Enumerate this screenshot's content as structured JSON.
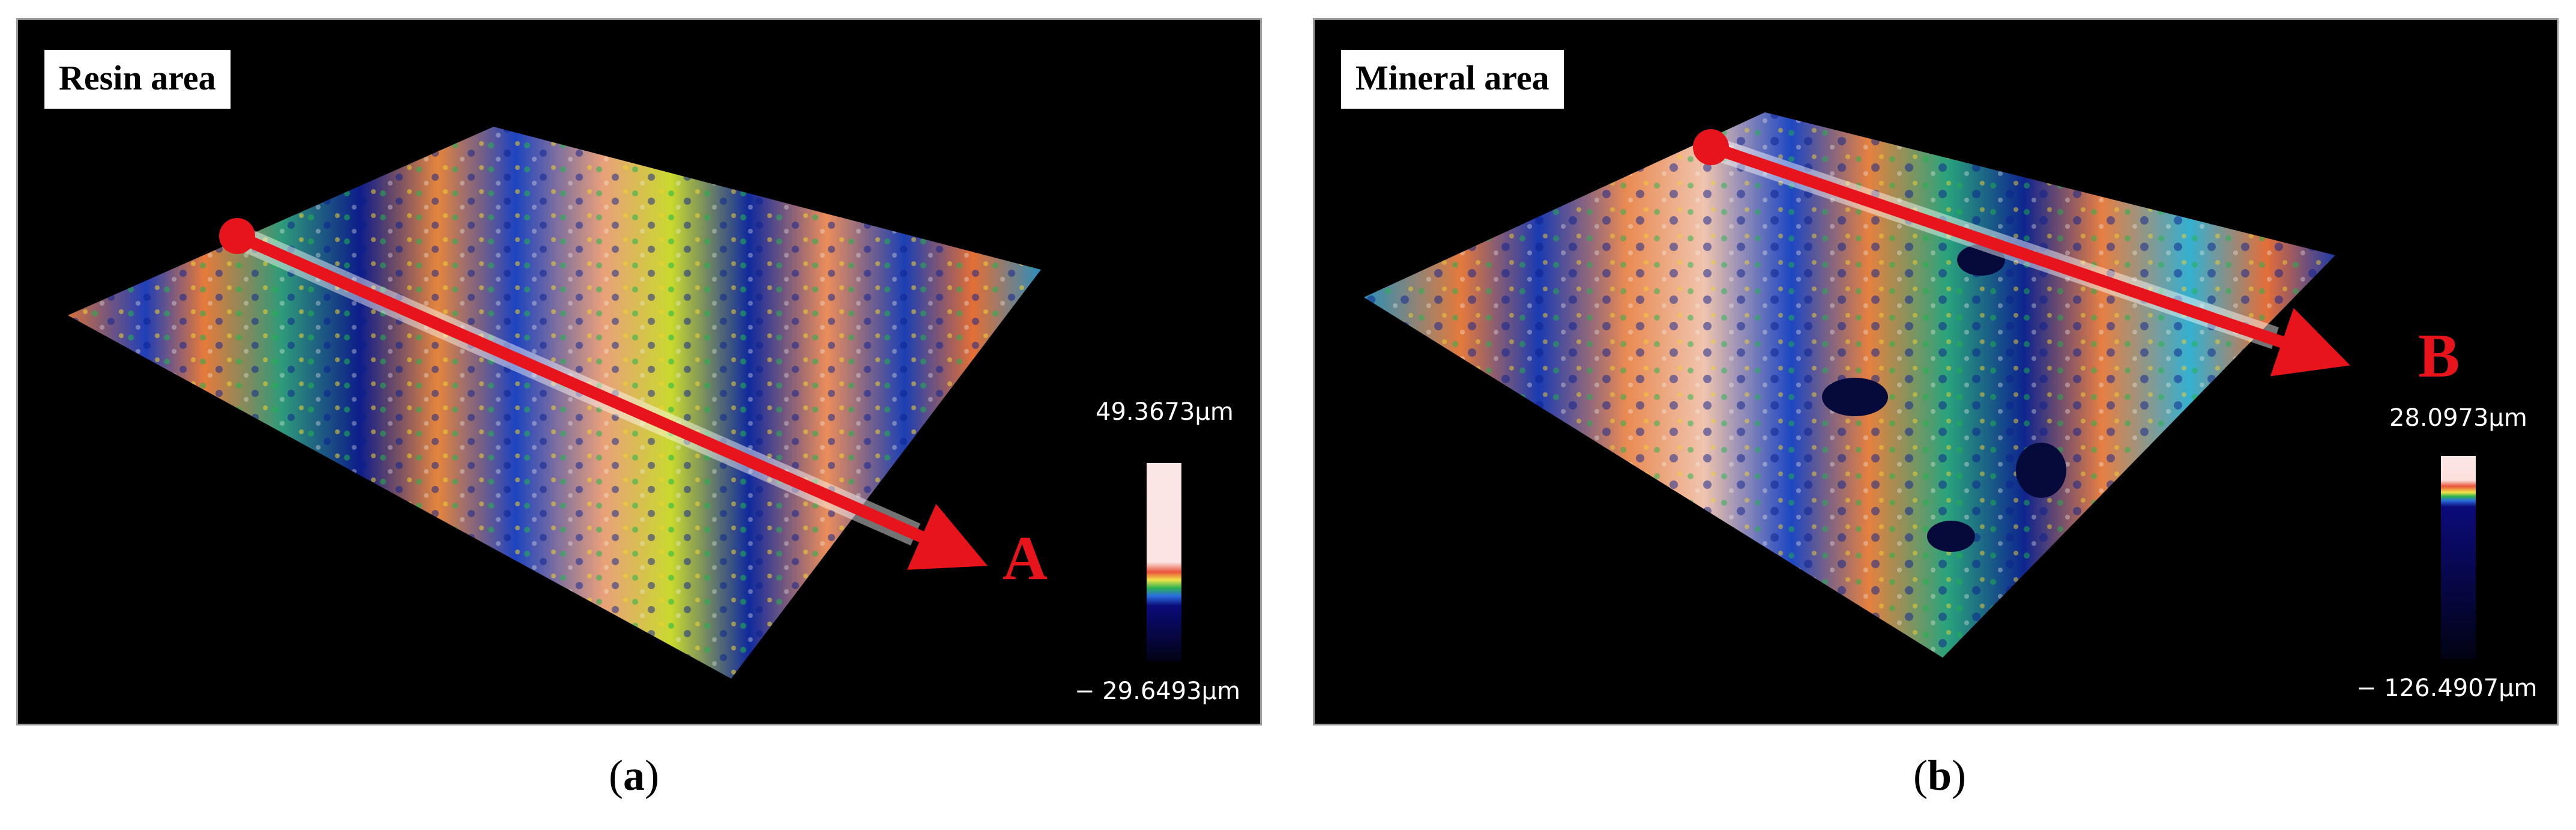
{
  "panels": [
    {
      "id": "a",
      "area_label": "Resin area",
      "marker": "A",
      "scale_max": "49.3673µm",
      "scale_min": "− 29.6493µm",
      "caption_letter": "a"
    },
    {
      "id": "b",
      "area_label": "Mineral area",
      "marker": "B",
      "scale_max": "28.0973µm",
      "scale_min": "− 126.4907µm",
      "caption_letter": "b"
    }
  ],
  "colors": {
    "arrow": "#e8141c",
    "background": "#000000"
  }
}
